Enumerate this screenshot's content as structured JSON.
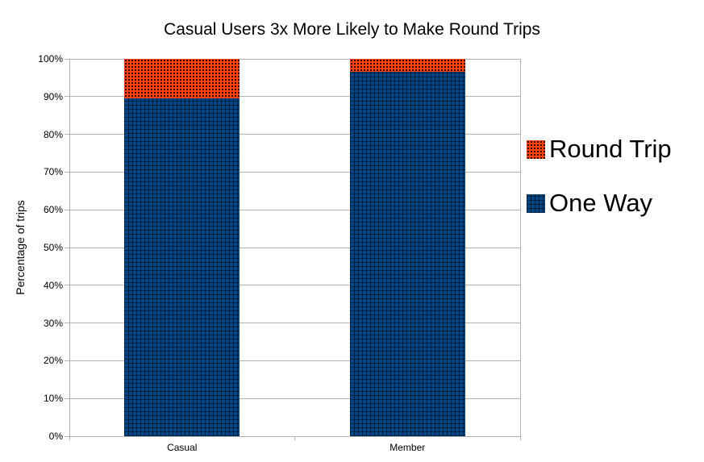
{
  "chart_data": {
    "type": "bar",
    "stacked": true,
    "title": "Casual Users 3x More Likely to Make Round Trips",
    "ylabel": "Percentage of trips",
    "xlabel": "",
    "categories": [
      "Casual",
      "Member"
    ],
    "series": [
      {
        "name": "One Way",
        "values": [
          89.5,
          96.5
        ],
        "color": "#004586",
        "pattern": "grid"
      },
      {
        "name": "Round Trip",
        "values": [
          10.5,
          3.5
        ],
        "color": "#FF420E",
        "pattern": "dots"
      }
    ],
    "legend": [
      {
        "label": "Round Trip",
        "color": "#FF420E",
        "pattern": "dots"
      },
      {
        "label": "One Way",
        "color": "#004586",
        "pattern": "grid"
      }
    ],
    "legend_position": "right",
    "ylim": [
      0,
      100
    ],
    "ytick_labels": [
      "0%",
      "10%",
      "20%",
      "30%",
      "40%",
      "50%",
      "60%",
      "70%",
      "80%",
      "90%",
      "100%"
    ],
    "grid": true,
    "colors": {
      "grid_line": "#b3b3b3",
      "axis_line": "#b3b3b3",
      "text": "#000000",
      "background": "#ffffff"
    }
  }
}
